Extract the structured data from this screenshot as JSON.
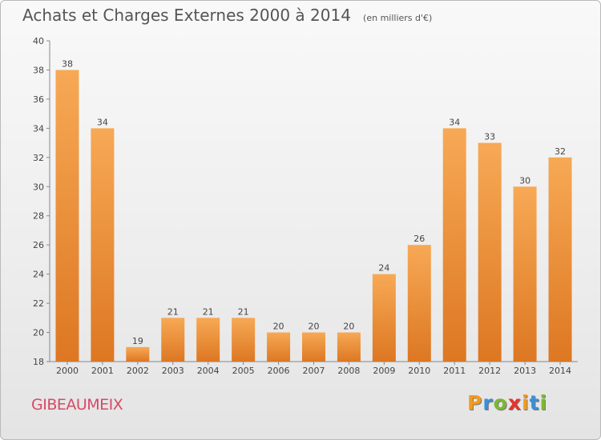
{
  "header": {
    "title": "Achats et Charges Externes 2000 à 2014",
    "unit": "(en milliers d'€)"
  },
  "commune": "GIBEAUMEIX",
  "brand": {
    "letters": [
      "P",
      "r",
      "o",
      "x",
      "i",
      "t",
      "i"
    ],
    "colors": [
      "#f39a1f",
      "#3a8fd6",
      "#7cb832",
      "#e8332a",
      "#f39a1f",
      "#3a8fd6",
      "#7cb832"
    ]
  },
  "colors": {
    "bar_light": "#f7a955",
    "bar_dark": "#dd7722",
    "axis_text": "#444444",
    "title_text": "#555555",
    "commune_text": "#d64a67"
  },
  "chart_data": {
    "type": "bar",
    "title": "Achats et Charges Externes 2000 à 2014",
    "subtitle": "(en milliers d'€)",
    "categories": [
      "2000",
      "2001",
      "2002",
      "2003",
      "2004",
      "2005",
      "2006",
      "2007",
      "2008",
      "2009",
      "2010",
      "2011",
      "2012",
      "2013",
      "2014"
    ],
    "values": [
      38,
      34,
      19,
      21,
      21,
      21,
      20,
      20,
      20,
      24,
      26,
      34,
      33,
      30,
      32
    ],
    "ylim": [
      18,
      40
    ],
    "yticks": [
      18,
      20,
      22,
      24,
      26,
      28,
      30,
      32,
      34,
      36,
      38,
      40
    ],
    "xlabel": "",
    "ylabel": "",
    "grid": false,
    "data_labels": true
  }
}
